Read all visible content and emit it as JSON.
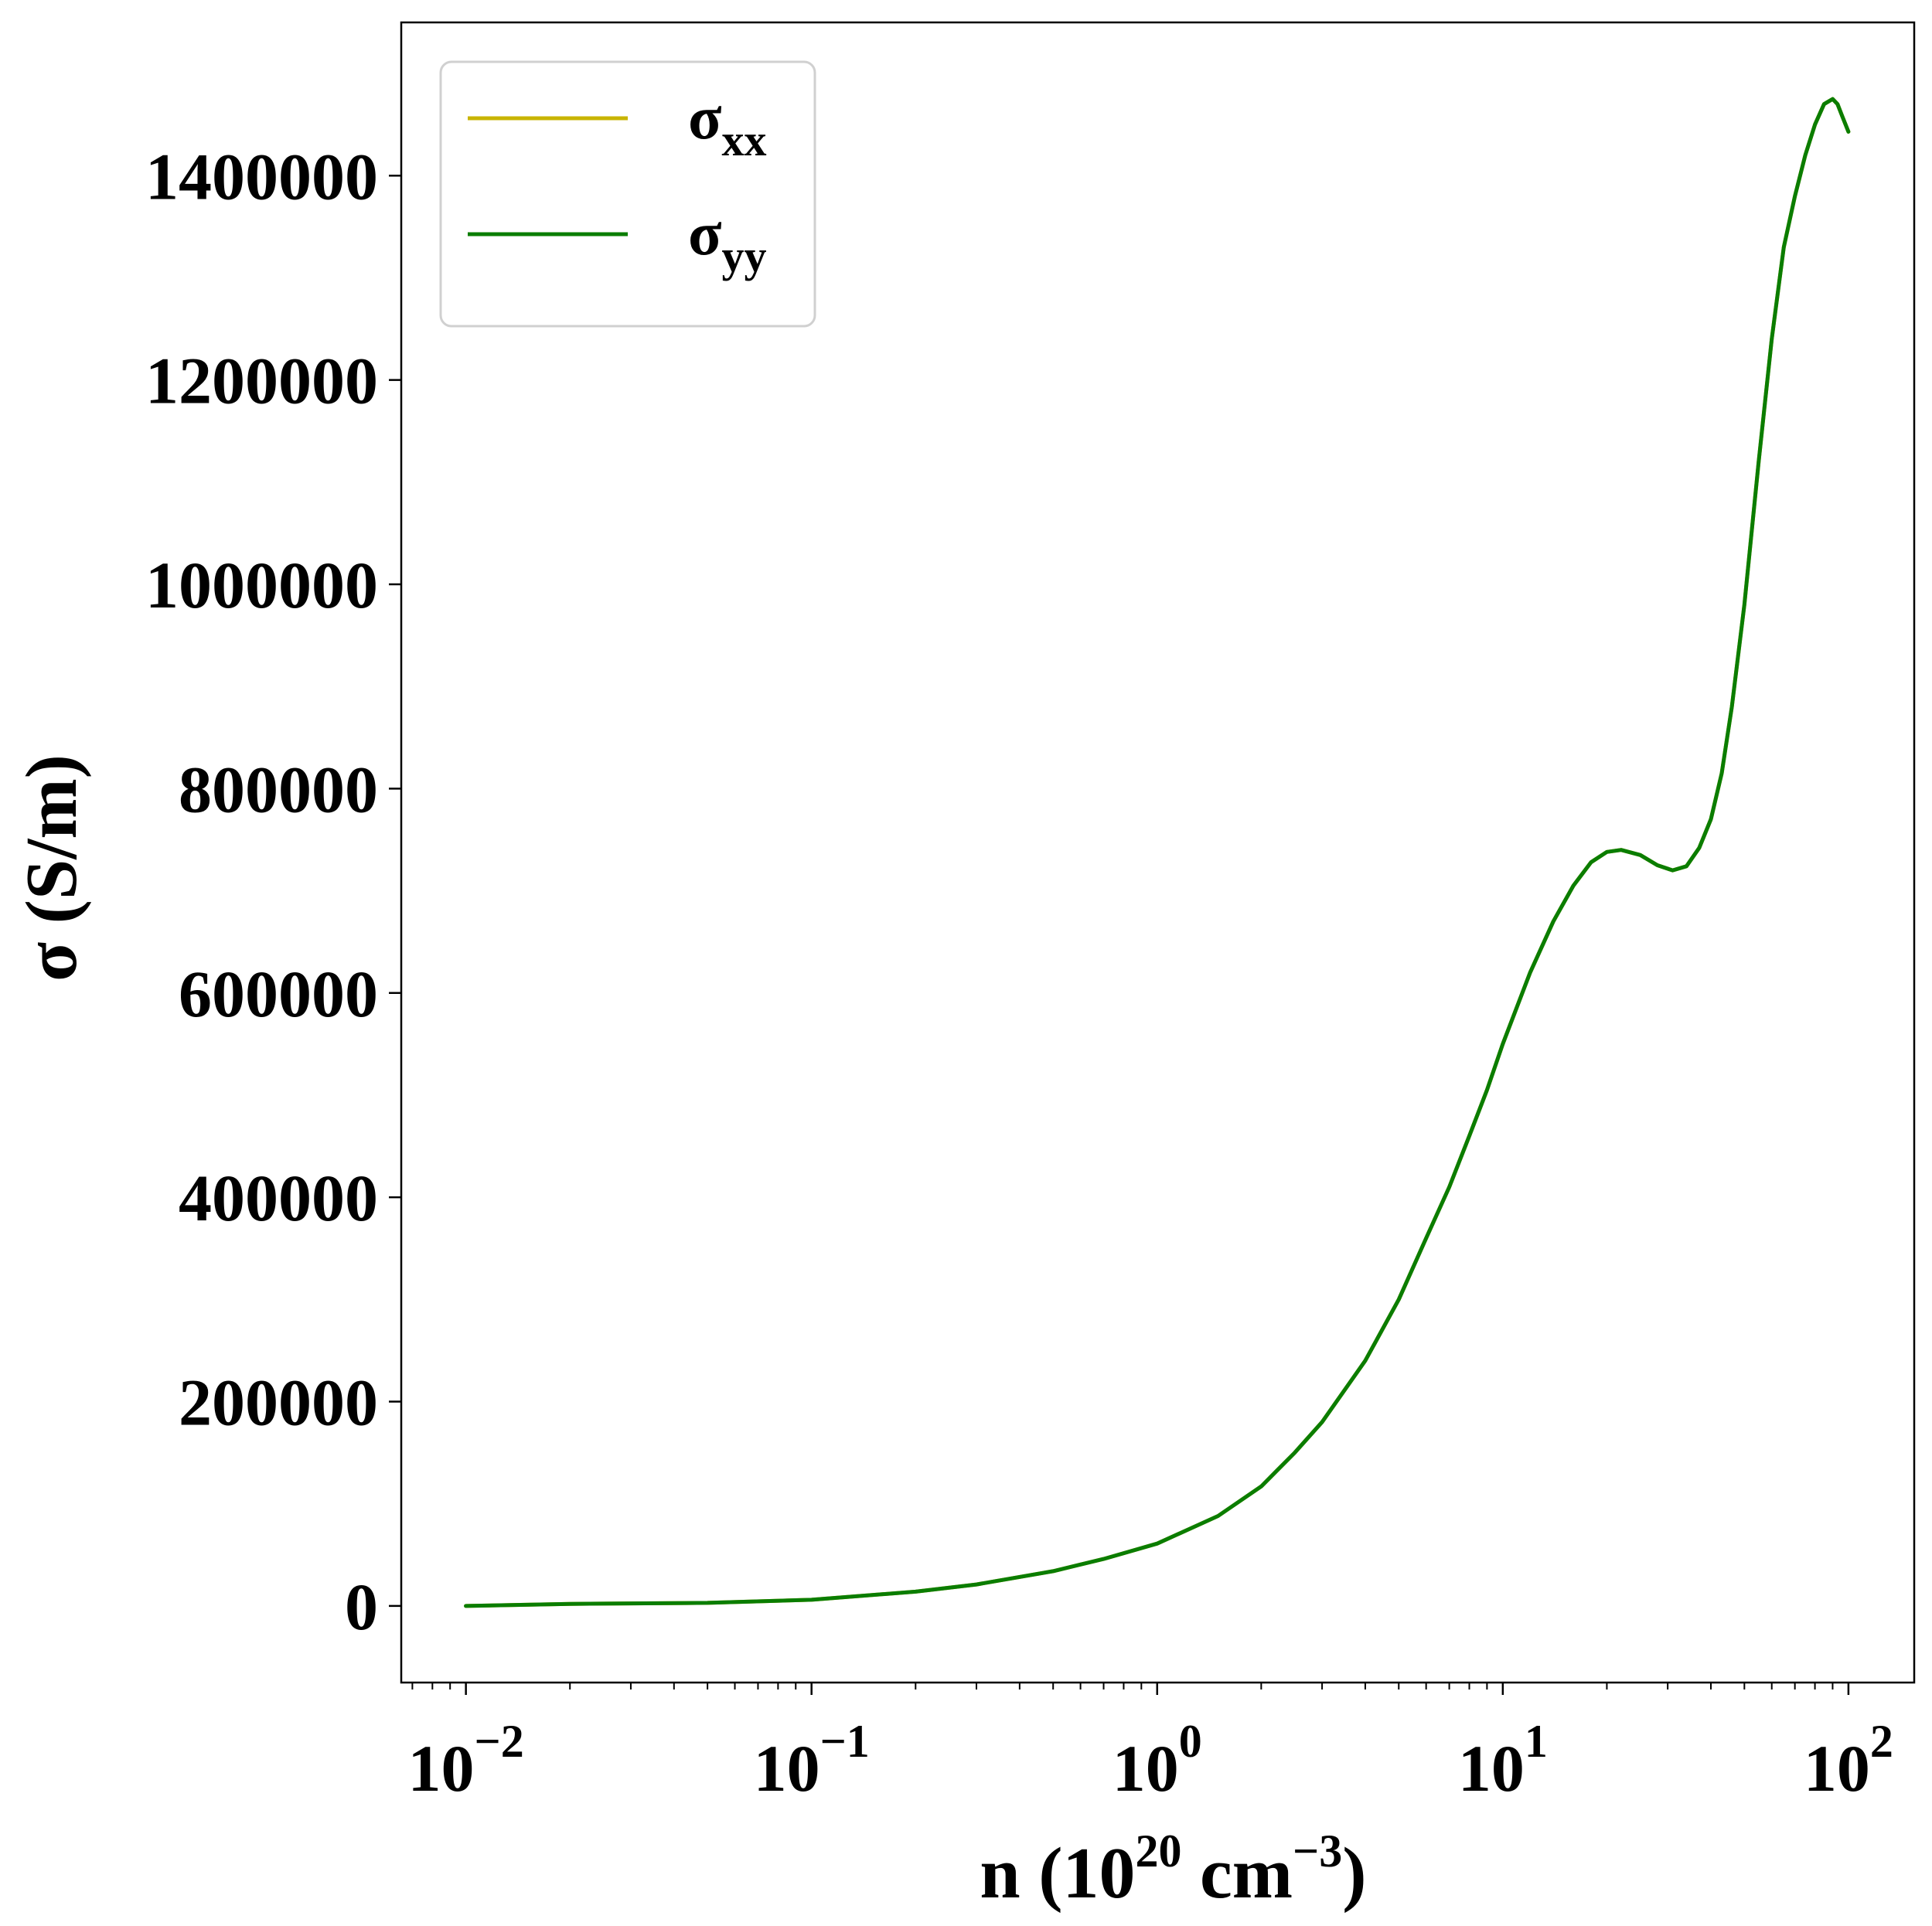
{
  "colors": {
    "sigma_xx": "#c8b400",
    "sigma_yy": "#0a7d00",
    "axes": "#000000",
    "legend_border": "#d0d0d0",
    "background": "#ffffff"
  },
  "chart_data": {
    "type": "line",
    "x_scale": "log",
    "xlim": [
      0.0065,
      155
    ],
    "ylim": [
      -75000,
      1550000
    ],
    "grid": false,
    "legend_position": "top-left",
    "xlabel": {
      "prefix": "n (10",
      "exp1": "20",
      "mid": " cm",
      "exp2": "−3",
      "suffix": ")"
    },
    "ylabel": "σ (S/m)",
    "x_ticks": [
      {
        "value": 0.01,
        "base": "10",
        "exp": "−2"
      },
      {
        "value": 0.1,
        "base": "10",
        "exp": "−1"
      },
      {
        "value": 1,
        "base": "10",
        "exp": "0"
      },
      {
        "value": 10,
        "base": "10",
        "exp": "1"
      },
      {
        "value": 100,
        "base": "10",
        "exp": "2"
      }
    ],
    "y_ticks": [
      {
        "value": 0,
        "label": "0"
      },
      {
        "value": 200000,
        "label": "200000"
      },
      {
        "value": 400000,
        "label": "400000"
      },
      {
        "value": 600000,
        "label": "600000"
      },
      {
        "value": 800000,
        "label": "800000"
      },
      {
        "value": 1000000,
        "label": "1000000"
      },
      {
        "value": 1200000,
        "label": "1200000"
      },
      {
        "value": 1400000,
        "label": "1400000"
      }
    ],
    "legend": [
      {
        "symbol": "σ",
        "sub": "xx",
        "color_key": "sigma_xx"
      },
      {
        "symbol": "σ",
        "sub": "yy",
        "color_key": "sigma_yy"
      }
    ],
    "series": [
      {
        "name": "σxx",
        "color_key": "sigma_xx",
        "x": [
          0.01,
          0.02,
          0.05,
          0.1,
          0.2,
          0.3,
          0.5,
          0.7,
          1,
          1.5,
          2,
          2.5,
          3,
          4,
          5,
          6,
          7,
          8,
          9,
          10,
          12,
          14,
          16,
          18,
          20,
          22,
          25,
          28,
          31,
          34,
          37,
          40,
          43,
          46,
          50,
          55,
          60,
          65,
          70,
          75,
          80,
          85,
          90,
          93,
          96,
          100
        ],
        "y": [
          0,
          2000,
          3000,
          6000,
          14000,
          21000,
          34000,
          46000,
          61000,
          88000,
          117000,
          150000,
          180000,
          240000,
          300000,
          360000,
          410000,
          460000,
          505000,
          550000,
          620000,
          670000,
          705000,
          728000,
          738000,
          740000,
          735000,
          725000,
          720000,
          724000,
          742000,
          770000,
          815000,
          880000,
          980000,
          1120000,
          1240000,
          1330000,
          1380000,
          1420000,
          1450000,
          1470000,
          1475000,
          1470000,
          1458000,
          1443000
        ]
      },
      {
        "name": "σyy",
        "color_key": "sigma_yy",
        "x": [
          0.01,
          0.02,
          0.05,
          0.1,
          0.2,
          0.3,
          0.5,
          0.7,
          1,
          1.5,
          2,
          2.5,
          3,
          4,
          5,
          6,
          7,
          8,
          9,
          10,
          12,
          14,
          16,
          18,
          20,
          22,
          25,
          28,
          31,
          34,
          37,
          40,
          43,
          46,
          50,
          55,
          60,
          65,
          70,
          75,
          80,
          85,
          90,
          93,
          96,
          100
        ],
        "y": [
          0,
          2000,
          3000,
          6000,
          14000,
          21000,
          34000,
          46000,
          61000,
          88000,
          117000,
          150000,
          180000,
          240000,
          300000,
          360000,
          410000,
          460000,
          505000,
          550000,
          620000,
          670000,
          705000,
          728000,
          738000,
          740000,
          735000,
          725000,
          720000,
          724000,
          742000,
          770000,
          815000,
          880000,
          980000,
          1120000,
          1240000,
          1330000,
          1380000,
          1420000,
          1450000,
          1470000,
          1475000,
          1470000,
          1458000,
          1443000
        ]
      }
    ]
  }
}
